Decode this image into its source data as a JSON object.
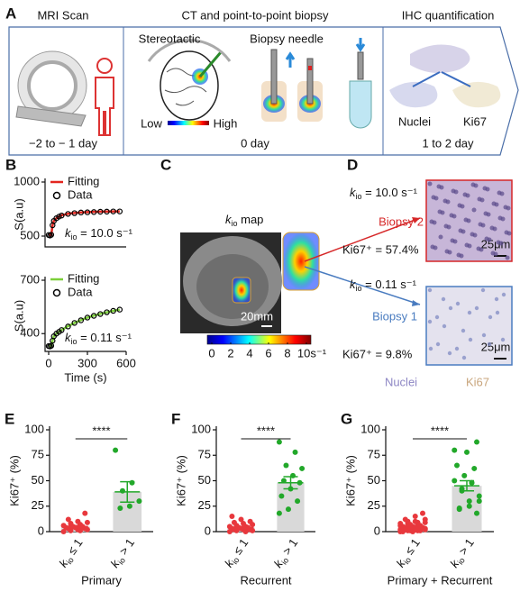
{
  "panel_a": {
    "label": "A",
    "sections": [
      {
        "title": "MRI Scan",
        "time": "−2 to − 1 day"
      },
      {
        "title": "CT and point-to-point biopsy",
        "time": "0 day",
        "labels": [
          "Stereotactic",
          "Biopsy needle",
          "Low",
          "High"
        ]
      },
      {
        "title": "IHC quantification",
        "time": "1 to 2 day",
        "labels": [
          "Nuclei",
          "Ki67"
        ]
      }
    ]
  },
  "panel_c": {
    "label": "C",
    "title": {
      "symbol": "k",
      "subscript": "io",
      "text": " map"
    },
    "colorbar_ticks": [
      0,
      2,
      4,
      6,
      8,
      {
        "value": 10,
        "label": "10s⁻¹"
      }
    ],
    "colorbar_lim": [
      0,
      10
    ],
    "scalebar": "20mm"
  },
  "panel_d": {
    "label": "D",
    "biopsy_2": {
      "k": {
        "symbol": "k",
        "subscript": "io",
        "text": " = 10.0 s⁻¹"
      },
      "name": "Biopsy 2",
      "ki67": "Ki67⁺ = 57.4%",
      "scalebar": "25μm"
    },
    "biopsy_1": {
      "k": {
        "symbol": "k",
        "subscript": "io",
        "text": " = 0.11 s⁻¹"
      },
      "name": "Biopsy 1",
      "ki67": "Ki67⁺ = 9.8%",
      "scalebar": "25μm"
    },
    "stain_labels": [
      "Nuclei",
      "Ki67"
    ]
  },
  "chart_data": [
    {
      "type": "line",
      "panel_label": "B",
      "ylabel": "S(a.u)",
      "annotation": {
        "symbol": "k",
        "subscript": "io",
        "text": " = 10.0 s⁻¹"
      },
      "xlim": [
        0,
        600
      ],
      "ylim": [
        400,
        1000
      ],
      "yticks": [
        500,
        1000
      ],
      "x": [
        0,
        10,
        20,
        30,
        40,
        60,
        80,
        100,
        150,
        200,
        250,
        300,
        350,
        400,
        450,
        500,
        550
      ],
      "series": [
        {
          "name": "Fitting",
          "color": "#e3261f",
          "marker": "line",
          "values": [
            510,
            510,
            510,
            600,
            640,
            665,
            680,
            692,
            706,
            714,
            719,
            722,
            724,
            726,
            727,
            728,
            728
          ]
        },
        {
          "name": "Data",
          "color": "#000000",
          "marker": "circle",
          "values": [
            510,
            505,
            512,
            600,
            640,
            665,
            680,
            690,
            705,
            712,
            718,
            720,
            722,
            725,
            726,
            728,
            728
          ]
        }
      ]
    },
    {
      "type": "line",
      "ylabel": "S(a.u)",
      "xlabel": "Time (s)",
      "annotation": {
        "symbol": "k",
        "subscript": "io",
        "text": " = 0.11 s⁻¹"
      },
      "xlim": [
        0,
        600
      ],
      "xticks": [
        0,
        300,
        600
      ],
      "ylim": [
        300,
        700
      ],
      "yticks": [
        400,
        700
      ],
      "x": [
        0,
        10,
        20,
        30,
        40,
        60,
        80,
        100,
        150,
        200,
        250,
        300,
        350,
        400,
        450,
        500,
        550
      ],
      "series": [
        {
          "name": "Fitting",
          "color": "#7ccf3a",
          "marker": "line",
          "values": [
            330,
            330,
            330,
            360,
            385,
            400,
            410,
            420,
            442,
            460,
            476,
            490,
            501,
            511,
            520,
            528,
            535
          ]
        },
        {
          "name": "Data",
          "color": "#000000",
          "marker": "circle",
          "values": [
            330,
            328,
            332,
            360,
            385,
            400,
            410,
            420,
            440,
            460,
            475,
            490,
            500,
            510,
            520,
            528,
            535
          ]
        }
      ]
    },
    {
      "type": "bar",
      "panel_label": "E",
      "xlabel": "Primary",
      "ylabel": "Ki67⁺ (%)",
      "significance": "****",
      "categories": [
        {
          "symbol": "k",
          "subscript": "io",
          "text": " ≤ 1"
        },
        {
          "symbol": "k",
          "subscript": "io",
          "text": " > 1"
        }
      ],
      "ylim": [
        0,
        100
      ],
      "yticks": [
        0,
        25,
        50,
        75,
        100
      ],
      "bar_color": "#d9d9d9",
      "colors": [
        "#e8383d",
        "#22a82a"
      ],
      "values": [
        5,
        39
      ],
      "errors": [
        1,
        10
      ],
      "points": [
        [
          0,
          1,
          1,
          2,
          2,
          3,
          3,
          4,
          4,
          5,
          5,
          6,
          7,
          8,
          9,
          10,
          12,
          18
        ],
        [
          80,
          48,
          40,
          30,
          25,
          23
        ]
      ]
    },
    {
      "type": "bar",
      "panel_label": "F",
      "xlabel": "Recurrent",
      "ylabel": "Ki67⁺ (%)",
      "significance": "****",
      "categories": [
        {
          "symbol": "k",
          "subscript": "io",
          "text": " ≤ 1"
        },
        {
          "symbol": "k",
          "subscript": "io",
          "text": " > 1"
        }
      ],
      "ylim": [
        0,
        100
      ],
      "yticks": [
        0,
        25,
        50,
        75,
        100
      ],
      "bar_color": "#d9d9d9",
      "colors": [
        "#e8383d",
        "#22a82a"
      ],
      "values": [
        4,
        48
      ],
      "errors": [
        1,
        6
      ],
      "points": [
        [
          0,
          0,
          1,
          1,
          2,
          2,
          2,
          3,
          3,
          4,
          4,
          5,
          5,
          6,
          7,
          8,
          9,
          10,
          12,
          15
        ],
        [
          88,
          78,
          65,
          62,
          55,
          50,
          48,
          42,
          35,
          30,
          22,
          18
        ]
      ]
    },
    {
      "type": "bar",
      "panel_label": "G",
      "xlabel": "Primary + Recurrent",
      "ylabel": "Ki67⁺ (%)",
      "significance": "****",
      "categories": [
        {
          "symbol": "k",
          "subscript": "io",
          "text": " ≤ 1"
        },
        {
          "symbol": "k",
          "subscript": "io",
          "text": " > 1"
        }
      ],
      "ylim": [
        0,
        100
      ],
      "yticks": [
        0,
        25,
        50,
        75,
        100
      ],
      "bar_color": "#d9d9d9",
      "colors": [
        "#e8383d",
        "#22a82a"
      ],
      "values": [
        4.5,
        45
      ],
      "errors": [
        1,
        5
      ],
      "points": [
        [
          0,
          1,
          1,
          2,
          2,
          3,
          3,
          4,
          4,
          5,
          5,
          6,
          7,
          8,
          9,
          10,
          12,
          18,
          0,
          0,
          1,
          1,
          2,
          2,
          2,
          3,
          3,
          4,
          4,
          5,
          5,
          6,
          7,
          8,
          9,
          10,
          12,
          15
        ],
        [
          80,
          48,
          40,
          30,
          25,
          23,
          88,
          78,
          65,
          62,
          55,
          50,
          48,
          42,
          35,
          30,
          22,
          18
        ]
      ]
    }
  ]
}
